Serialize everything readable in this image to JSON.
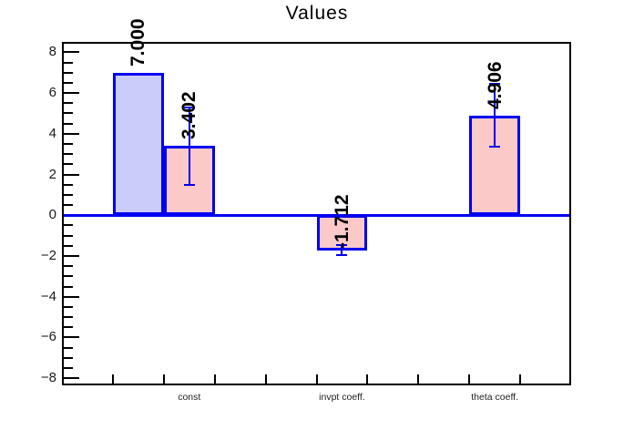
{
  "chart_data": {
    "type": "bar",
    "title": "Values",
    "xlabel": "",
    "ylabel": "",
    "ylim": [
      -8.35,
      8.51
    ],
    "ytick_values": [
      -8,
      -6,
      -4,
      -2,
      0,
      2,
      4,
      6,
      8
    ],
    "ytick_labels": [
      "−8",
      "−6",
      "−4",
      "−2",
      "0",
      "2",
      "4",
      "6",
      "8"
    ],
    "ytick_minor_step": 0.5,
    "x_divisions": 10,
    "grid": "off",
    "legend": "none",
    "baseline": 0,
    "categories": [
      {
        "label": "const",
        "bin": 2
      },
      {
        "label": "invpt coeff.",
        "bin": 5
      },
      {
        "label": "theta coeff.",
        "bin": 8
      }
    ],
    "bars": [
      {
        "category": "const",
        "series": "blue",
        "bin": 1,
        "value": 7.0,
        "label": "7.000",
        "error": 0,
        "fill": "#ccccfa"
      },
      {
        "category": "const",
        "series": "pink",
        "bin": 2,
        "value": 3.402,
        "label": "3.402",
        "error": 1.9,
        "fill": "#fcc9c9"
      },
      {
        "category": "invpt coeff.",
        "series": "pink",
        "bin": 5,
        "value": -1.712,
        "label": "-1.712",
        "error": 0.25,
        "fill": "#fcc9c9"
      },
      {
        "category": "theta coeff.",
        "series": "pink",
        "bin": 8,
        "value": 4.906,
        "label": "4.906",
        "error": 1.55,
        "fill": "#fcc9c9"
      }
    ],
    "colors": {
      "bar_line": "#0000f2",
      "blue_fill": "#ccccfa",
      "pink_fill": "#fcc9c9",
      "frame": "#000000",
      "text": "#000000"
    }
  }
}
